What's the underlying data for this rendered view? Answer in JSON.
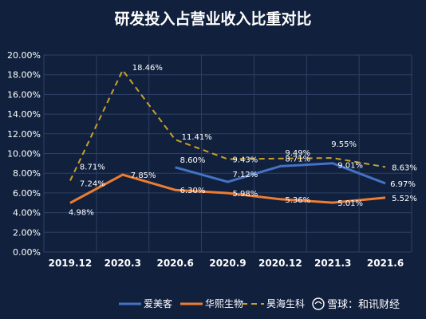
{
  "chart_data": {
    "type": "line",
    "title": "研发投入占营业收入比重对比",
    "categories": [
      "2019.12",
      "2020.3",
      "2020.6",
      "2020.9",
      "2020.12",
      "2021.3",
      "2021.6"
    ],
    "y_ticks": [
      "0.00%",
      "2.00%",
      "4.00%",
      "6.00%",
      "8.00%",
      "10.00%",
      "12.00%",
      "14.00%",
      "16.00%",
      "18.00%",
      "20.00%"
    ],
    "ylim": [
      0,
      20
    ],
    "grid": true,
    "legend_position": "bottom",
    "series": [
      {
        "name": "爱美客",
        "color": "#4472c4",
        "style": "solid",
        "values": [
          null,
          null,
          8.6,
          7.12,
          8.71,
          9.01,
          6.97
        ],
        "labels": [
          "",
          "",
          "8.60%",
          "7.12%",
          "8.71%",
          "9.01%",
          "6.97%"
        ]
      },
      {
        "name": "华熙生物",
        "color": "#ed7d31",
        "style": "solid",
        "values": [
          4.98,
          7.85,
          6.3,
          5.98,
          5.36,
          5.01,
          5.52
        ],
        "labels": [
          "4.98%",
          "7.85%",
          "6.30%",
          "5.98%",
          "5.36%",
          "5.01%",
          "5.52%"
        ]
      },
      {
        "name": "昊海生科",
        "color": "#c9a227",
        "style": "dashed",
        "values": [
          7.24,
          18.46,
          11.41,
          9.43,
          9.49,
          9.55,
          8.63
        ],
        "labels": [
          "7.24%",
          "18.46%",
          "11.41%",
          "9.43%",
          "9.49%",
          "9.55%",
          "8.63%"
        ]
      }
    ],
    "extra_labels": [
      {
        "text": "8.71%",
        "category_index": 0,
        "value": 8.71
      }
    ]
  },
  "watermark": {
    "text": "雪球：和讯财经",
    "icon": "snowball-logo-icon"
  }
}
